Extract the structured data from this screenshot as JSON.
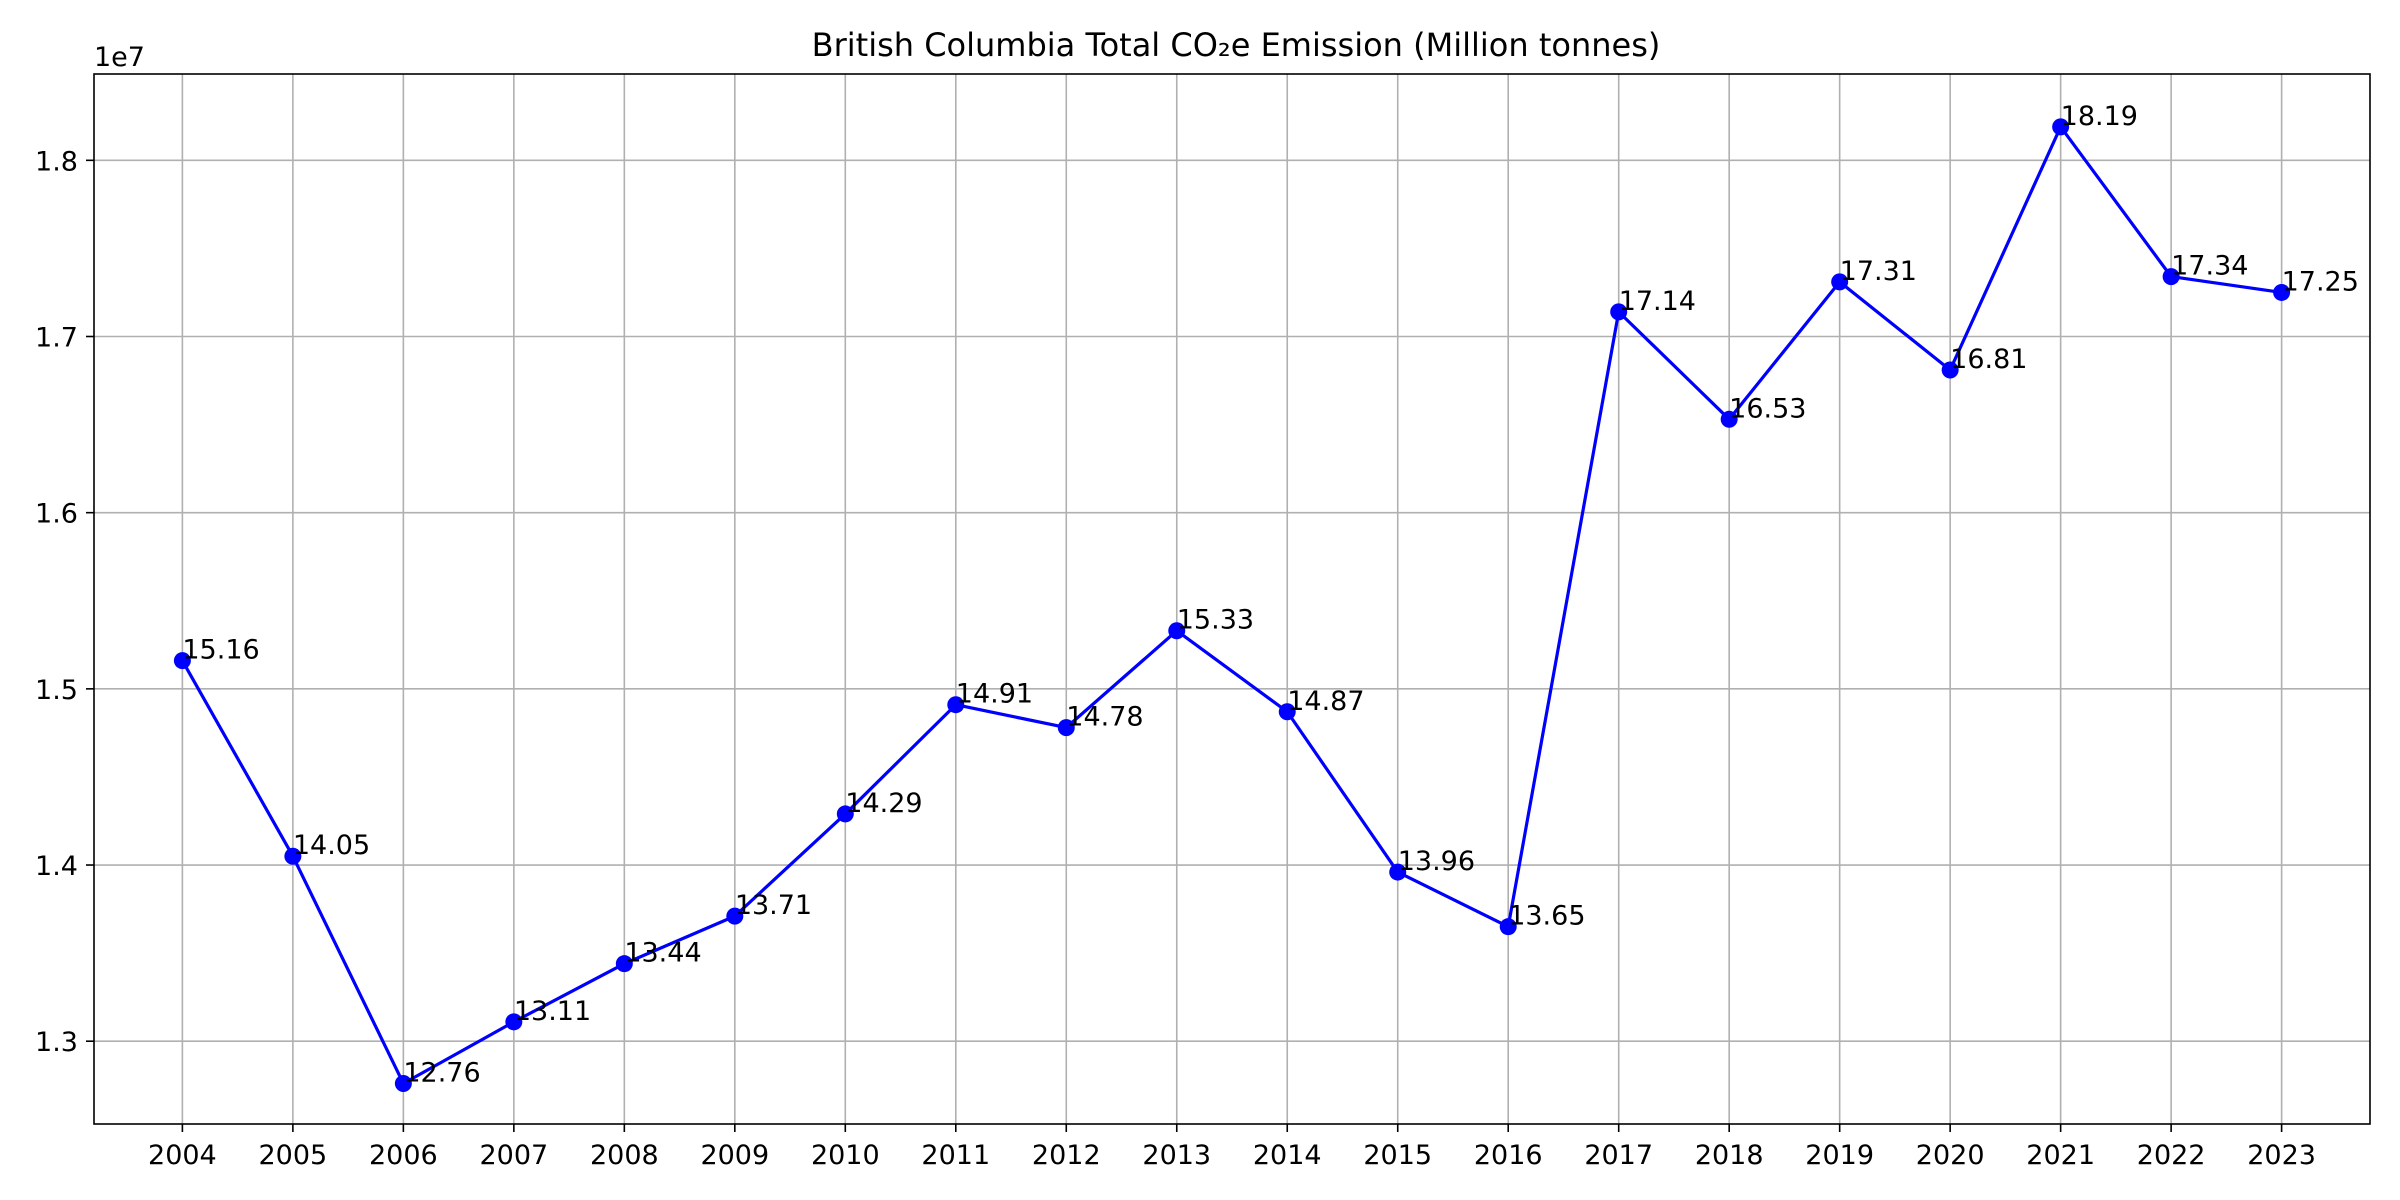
{
  "chart_data": {
    "type": "line",
    "title": "British Columbia Total CO₂e Emission (Million tonnes)",
    "xlabel": "",
    "ylabel": "",
    "y_offset_label": "1e7",
    "x": [
      "2004",
      "2005",
      "2006",
      "2007",
      "2008",
      "2009",
      "2010",
      "2011",
      "2012",
      "2013",
      "2014",
      "2015",
      "2016",
      "2017",
      "2018",
      "2019",
      "2020",
      "2021",
      "2022",
      "2023"
    ],
    "series": [
      {
        "values": [
          15160000,
          14050000,
          12760000,
          13110000,
          13440000,
          13710000,
          14290000,
          14910000,
          14780000,
          15330000,
          14870000,
          13960000,
          13650000,
          17140000,
          16530000,
          17310000,
          16810000,
          18190000,
          17340000,
          17250000
        ],
        "color": "#0000ff"
      }
    ],
    "data_labels": [
      "15.16",
      "14.05",
      "12.76",
      "13.11",
      "13.44",
      "13.71",
      "14.29",
      "14.91",
      "14.78",
      "15.33",
      "14.87",
      "13.96",
      "13.65",
      "17.14",
      "16.53",
      "17.31",
      "16.81",
      "18.19",
      "17.34",
      "17.25"
    ],
    "y_ticks": [
      13000000,
      14000000,
      15000000,
      16000000,
      17000000,
      18000000
    ],
    "y_tick_labels": [
      "1.3",
      "1.4",
      "1.5",
      "1.6",
      "1.7",
      "1.8"
    ],
    "ylim": [
      12530000,
      18490000
    ],
    "grid": true,
    "legend": "none"
  }
}
